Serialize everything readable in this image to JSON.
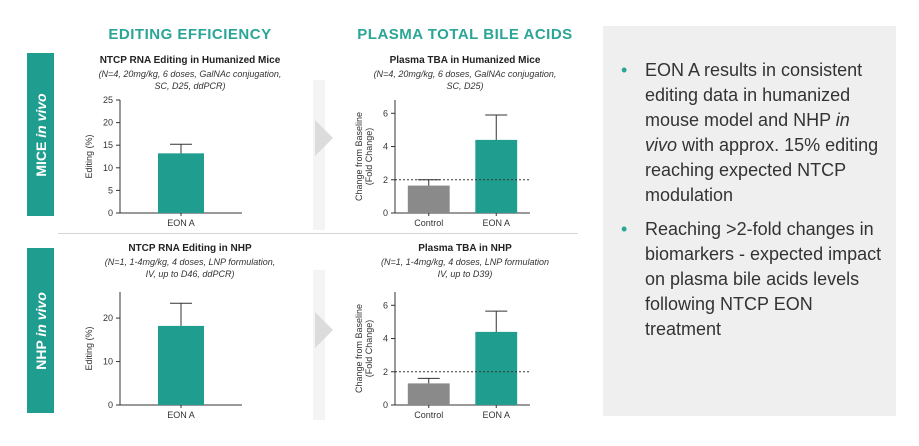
{
  "headers": {
    "editing": "EDITING EFFICIENCY",
    "plasma": "PLASMA TOTAL BILE ACIDS"
  },
  "rows": {
    "mice": "MICE in vivo",
    "nhp": "NHP in vivo"
  },
  "rows_parts": {
    "mice": {
      "strong": "MICE ",
      "em": "in vivo"
    },
    "nhp": {
      "strong": "NHP ",
      "em": "in vivo"
    }
  },
  "colors": {
    "teal": "#1f9e8f",
    "grey": "#8a8a8a",
    "panel": "#efefef"
  },
  "bullets": [
    {
      "pre": "EON A results in consistent editing data in humanized mouse model and NHP ",
      "em": "in vivo",
      "post": " with approx. 15% editing reaching expected NTCP modulation"
    },
    {
      "pre": "Reaching >2-fold changes in biomarkers - expected impact on plasma bile acids levels following NTCP EON treatment",
      "em": "",
      "post": ""
    }
  ],
  "chart_data": [
    {
      "id": "mice-editing",
      "type": "bar",
      "title": "NTCP RNA Editing in Humanized Mice",
      "subtitle_lines": [
        "(N=4, 20mg/kg, 6 doses, GalNAc conjugation,",
        "SC, D25, ddPCR)"
      ],
      "ylabel_lines": [
        "Editing (%)"
      ],
      "categories": [
        "EON A"
      ],
      "values": [
        13.2
      ],
      "errors": [
        2.0
      ],
      "ylim": [
        0,
        25
      ],
      "yticks": [
        0,
        5,
        10,
        15,
        20,
        25
      ],
      "bar_colors": [
        "#1f9e8f"
      ],
      "reference_line": null
    },
    {
      "id": "mice-tba",
      "type": "bar",
      "title": "Plasma TBA in Humanized Mice",
      "subtitle_lines": [
        "(N=4, 20mg/kg, 6 doses, GalNAc conjugation,",
        "SC, D25)"
      ],
      "ylabel_lines": [
        "Change from Baseline",
        "(Fold  Change)"
      ],
      "categories": [
        "Control",
        "EON A"
      ],
      "values": [
        1.65,
        4.4
      ],
      "errors": [
        0.35,
        1.5
      ],
      "ylim": [
        0,
        6.8
      ],
      "yticks": [
        0,
        2,
        4,
        6
      ],
      "bar_colors": [
        "#8a8a8a",
        "#1f9e8f"
      ],
      "reference_line": 2
    },
    {
      "id": "nhp-editing",
      "type": "bar",
      "title": "NTCP RNA Editing in NHP",
      "subtitle_lines": [
        "(N=1, 1-4mg/kg, 4 doses, LNP formulation,",
        "IV, up to D46, ddPCR)"
      ],
      "ylabel_lines": [
        "Editing (%)"
      ],
      "categories": [
        "EON A"
      ],
      "values": [
        18.2
      ],
      "errors": [
        5.2
      ],
      "ylim": [
        0,
        26
      ],
      "yticks": [
        0,
        10,
        20
      ],
      "bar_colors": [
        "#1f9e8f"
      ],
      "reference_line": null
    },
    {
      "id": "nhp-tba",
      "type": "bar",
      "title": "Plasma TBA in NHP",
      "subtitle_lines": [
        "(N=1, 1-4mg/kg, 4 doses, LNP formulation",
        "IV, up to D39)"
      ],
      "ylabel_lines": [
        "Change from Baseline",
        "(Fold  Change)"
      ],
      "categories": [
        "Control",
        "EON A"
      ],
      "values": [
        1.3,
        4.4
      ],
      "errors": [
        0.3,
        1.25
      ],
      "ylim": [
        0,
        6.8
      ],
      "yticks": [
        0,
        2,
        4,
        6
      ],
      "bar_colors": [
        "#8a8a8a",
        "#1f9e8f"
      ],
      "reference_line": 2
    }
  ]
}
